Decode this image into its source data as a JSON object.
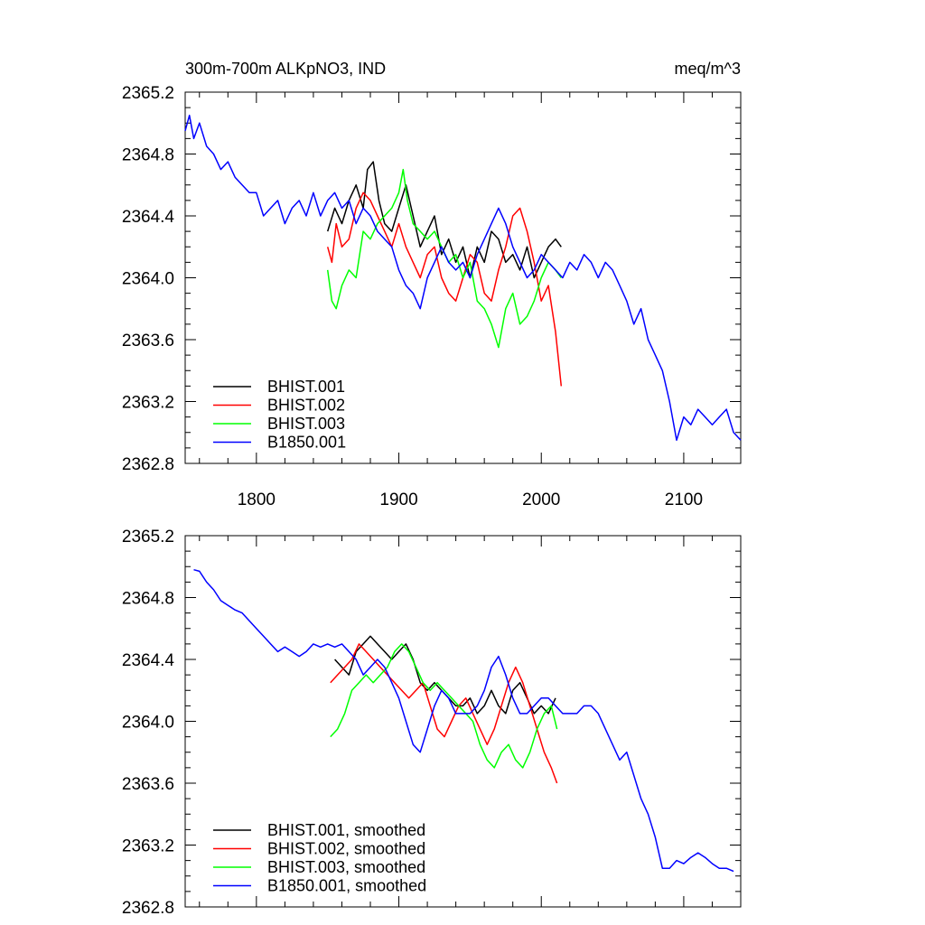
{
  "colors": {
    "BHIST.001": "#000000",
    "BHIST.002": "#ff0000",
    "BHIST.003": "#00ff00",
    "B1850.001": "#0000ff"
  },
  "chart_data": [
    {
      "type": "line",
      "title_left": "300m-700m ALKpNO3, IND",
      "title_right": "meq/m^3",
      "xlabel": "",
      "ylabel": "",
      "xlim": [
        1750,
        2140
      ],
      "ylim": [
        2362.8,
        2365.2
      ],
      "xticks": [
        1800,
        1900,
        2000,
        2100
      ],
      "xtick_labels": [
        "1800",
        "1900",
        "2000",
        "2100"
      ],
      "yticks": [
        2362.8,
        2363.2,
        2363.6,
        2364.0,
        2364.4,
        2364.8,
        2365.2
      ],
      "ytick_labels": [
        "2362.8",
        "2363.2",
        "2363.6",
        "2364.0",
        "2364.4",
        "2364.8",
        "2365.2"
      ],
      "legend_position": "bottom-left",
      "series": [
        {
          "name": "BHIST.001",
          "x": [
            1850,
            1855,
            1860,
            1865,
            1870,
            1875,
            1878,
            1882,
            1886,
            1890,
            1895,
            1900,
            1905,
            1910,
            1915,
            1920,
            1925,
            1930,
            1935,
            1940,
            1945,
            1950,
            1955,
            1960,
            1965,
            1970,
            1975,
            1980,
            1985,
            1990,
            1995,
            2000,
            2005,
            2010,
            2014
          ],
          "y": [
            2364.3,
            2364.45,
            2364.35,
            2364.5,
            2364.6,
            2364.45,
            2364.7,
            2364.75,
            2364.5,
            2364.35,
            2364.3,
            2364.45,
            2364.6,
            2364.4,
            2364.2,
            2364.3,
            2364.4,
            2364.15,
            2364.25,
            2364.1,
            2364.2,
            2364.0,
            2364.2,
            2364.1,
            2364.3,
            2364.25,
            2364.1,
            2364.15,
            2364.05,
            2364.2,
            2364.0,
            2364.1,
            2364.2,
            2364.25,
            2364.2
          ]
        },
        {
          "name": "BHIST.002",
          "x": [
            1850,
            1853,
            1856,
            1860,
            1865,
            1870,
            1875,
            1880,
            1885,
            1890,
            1895,
            1900,
            1905,
            1910,
            1915,
            1920,
            1925,
            1930,
            1935,
            1940,
            1945,
            1950,
            1955,
            1960,
            1965,
            1970,
            1975,
            1980,
            1985,
            1990,
            1995,
            2000,
            2005,
            2010,
            2014
          ],
          "y": [
            2364.2,
            2364.1,
            2364.35,
            2364.2,
            2364.25,
            2364.45,
            2364.55,
            2364.5,
            2364.4,
            2364.3,
            2364.2,
            2364.35,
            2364.2,
            2364.1,
            2364.0,
            2364.15,
            2364.2,
            2364.0,
            2363.9,
            2363.85,
            2364.0,
            2364.15,
            2364.1,
            2363.9,
            2363.85,
            2364.05,
            2364.2,
            2364.4,
            2364.45,
            2364.3,
            2364.1,
            2363.85,
            2363.95,
            2363.65,
            2363.3
          ]
        },
        {
          "name": "BHIST.003",
          "x": [
            1850,
            1853,
            1856,
            1860,
            1865,
            1870,
            1875,
            1880,
            1885,
            1890,
            1895,
            1900,
            1903,
            1906,
            1910,
            1915,
            1920,
            1925,
            1930,
            1935,
            1940,
            1945,
            1950,
            1955,
            1960,
            1965,
            1970,
            1975,
            1980,
            1985,
            1990,
            1995,
            2000,
            2005,
            2010,
            2014
          ],
          "y": [
            2364.05,
            2363.85,
            2363.8,
            2363.95,
            2364.05,
            2364.0,
            2364.3,
            2364.25,
            2364.35,
            2364.4,
            2364.45,
            2364.55,
            2364.7,
            2364.5,
            2364.35,
            2364.3,
            2364.25,
            2364.3,
            2364.2,
            2364.1,
            2364.15,
            2364.0,
            2364.1,
            2363.85,
            2363.8,
            2363.7,
            2363.55,
            2363.8,
            2363.9,
            2363.7,
            2363.75,
            2363.85,
            2364.0,
            2364.1,
            2364.05,
            2364.0
          ]
        },
        {
          "name": "B1850.001",
          "x": [
            1750,
            1753,
            1756,
            1760,
            1765,
            1770,
            1775,
            1780,
            1785,
            1790,
            1795,
            1800,
            1805,
            1810,
            1815,
            1820,
            1825,
            1830,
            1835,
            1840,
            1845,
            1850,
            1855,
            1860,
            1865,
            1870,
            1875,
            1880,
            1885,
            1890,
            1895,
            1900,
            1905,
            1910,
            1915,
            1920,
            1925,
            1930,
            1935,
            1940,
            1945,
            1950,
            1955,
            1960,
            1965,
            1970,
            1975,
            1980,
            1985,
            1990,
            1995,
            2000,
            2005,
            2010,
            2015,
            2020,
            2025,
            2030,
            2035,
            2040,
            2045,
            2050,
            2055,
            2060,
            2065,
            2070,
            2075,
            2080,
            2085,
            2090,
            2095,
            2100,
            2105,
            2110,
            2115,
            2120,
            2125,
            2130,
            2135,
            2140
          ],
          "y": [
            2364.95,
            2365.05,
            2364.9,
            2365.0,
            2364.85,
            2364.8,
            2364.7,
            2364.75,
            2364.65,
            2364.6,
            2364.55,
            2364.55,
            2364.4,
            2364.45,
            2364.5,
            2364.35,
            2364.45,
            2364.5,
            2364.4,
            2364.55,
            2364.4,
            2364.5,
            2364.55,
            2364.45,
            2364.5,
            2364.35,
            2364.45,
            2364.4,
            2364.3,
            2364.25,
            2364.2,
            2364.05,
            2363.95,
            2363.9,
            2363.8,
            2364.0,
            2364.1,
            2364.2,
            2364.1,
            2364.05,
            2364.1,
            2364.0,
            2364.15,
            2364.25,
            2364.35,
            2364.45,
            2364.35,
            2364.2,
            2364.1,
            2364.0,
            2364.05,
            2364.15,
            2364.1,
            2364.05,
            2364.0,
            2364.1,
            2364.05,
            2364.15,
            2364.1,
            2364.0,
            2364.1,
            2364.05,
            2363.95,
            2363.85,
            2363.7,
            2363.8,
            2363.6,
            2363.5,
            2363.4,
            2363.2,
            2362.95,
            2363.1,
            2363.05,
            2363.15,
            2363.1,
            2363.05,
            2363.1,
            2363.15,
            2363.0,
            2362.95
          ]
        }
      ]
    },
    {
      "type": "line",
      "title_left": "",
      "title_right": "",
      "xlabel": "",
      "ylabel": "",
      "xlim": [
        1750,
        2140
      ],
      "ylim": [
        2362.8,
        2365.2
      ],
      "xticks": [
        1800,
        1900,
        2000,
        2100
      ],
      "xtick_labels": [],
      "yticks": [
        2362.8,
        2363.2,
        2363.6,
        2364.0,
        2364.4,
        2364.8,
        2365.2
      ],
      "ytick_labels": [
        "2362.8",
        "2363.2",
        "2363.6",
        "2364.0",
        "2364.4",
        "2364.8",
        "2365.2"
      ],
      "legend_position": "bottom-left",
      "series": [
        {
          "name": "BHIST.001, smoothed",
          "x": [
            1855,
            1860,
            1865,
            1870,
            1875,
            1880,
            1885,
            1890,
            1895,
            1900,
            1905,
            1910,
            1915,
            1920,
            1925,
            1930,
            1935,
            1940,
            1945,
            1950,
            1955,
            1960,
            1965,
            1970,
            1975,
            1980,
            1985,
            1990,
            1995,
            2000,
            2005,
            2010
          ],
          "y": [
            2364.4,
            2364.35,
            2364.3,
            2364.45,
            2364.5,
            2364.55,
            2364.5,
            2364.45,
            2364.4,
            2364.45,
            2364.5,
            2364.4,
            2364.25,
            2364.2,
            2364.25,
            2364.2,
            2364.15,
            2364.1,
            2364.1,
            2364.15,
            2364.05,
            2364.1,
            2364.2,
            2364.1,
            2364.05,
            2364.2,
            2364.25,
            2364.15,
            2364.05,
            2364.1,
            2364.05,
            2364.15
          ]
        },
        {
          "name": "BHIST.002, smoothed",
          "x": [
            1852,
            1857,
            1862,
            1867,
            1872,
            1877,
            1882,
            1887,
            1892,
            1897,
            1902,
            1907,
            1912,
            1917,
            1922,
            1927,
            1932,
            1937,
            1942,
            1947,
            1952,
            1957,
            1962,
            1967,
            1972,
            1977,
            1982,
            1987,
            1992,
            1997,
            2002,
            2007,
            2011
          ],
          "y": [
            2364.25,
            2364.3,
            2364.35,
            2364.4,
            2364.5,
            2364.45,
            2364.4,
            2364.35,
            2364.3,
            2364.25,
            2364.2,
            2364.15,
            2364.2,
            2364.25,
            2364.1,
            2363.95,
            2363.9,
            2364.0,
            2364.1,
            2364.15,
            2364.05,
            2363.95,
            2363.85,
            2363.95,
            2364.1,
            2364.25,
            2364.35,
            2364.25,
            2364.1,
            2363.95,
            2363.8,
            2363.7,
            2363.6
          ]
        },
        {
          "name": "BHIST.003, smoothed",
          "x": [
            1852,
            1857,
            1862,
            1867,
            1872,
            1877,
            1882,
            1887,
            1892,
            1897,
            1902,
            1907,
            1912,
            1917,
            1922,
            1927,
            1932,
            1937,
            1942,
            1947,
            1952,
            1957,
            1962,
            1967,
            1972,
            1977,
            1982,
            1987,
            1992,
            1997,
            2002,
            2007,
            2011
          ],
          "y": [
            2363.9,
            2363.95,
            2364.05,
            2364.2,
            2364.25,
            2364.3,
            2364.25,
            2364.3,
            2364.35,
            2364.45,
            2364.5,
            2364.45,
            2364.35,
            2364.25,
            2364.2,
            2364.25,
            2364.2,
            2364.15,
            2364.1,
            2364.05,
            2364.0,
            2363.85,
            2363.75,
            2363.7,
            2363.8,
            2363.85,
            2363.75,
            2363.7,
            2363.8,
            2363.95,
            2364.05,
            2364.1,
            2363.95
          ]
        },
        {
          "name": "B1850.001, smoothed",
          "x": [
            1756,
            1760,
            1765,
            1770,
            1775,
            1780,
            1785,
            1790,
            1795,
            1800,
            1805,
            1810,
            1815,
            1820,
            1825,
            1830,
            1835,
            1840,
            1845,
            1850,
            1855,
            1860,
            1865,
            1870,
            1875,
            1880,
            1885,
            1890,
            1895,
            1900,
            1905,
            1910,
            1915,
            1920,
            1925,
            1930,
            1935,
            1940,
            1945,
            1950,
            1955,
            1960,
            1965,
            1970,
            1975,
            1980,
            1985,
            1990,
            1995,
            2000,
            2005,
            2010,
            2015,
            2020,
            2025,
            2030,
            2035,
            2040,
            2045,
            2050,
            2055,
            2060,
            2065,
            2070,
            2075,
            2080,
            2085,
            2090,
            2095,
            2100,
            2105,
            2110,
            2115,
            2120,
            2125,
            2130,
            2135
          ],
          "y": [
            2364.98,
            2364.97,
            2364.9,
            2364.85,
            2364.78,
            2364.75,
            2364.72,
            2364.7,
            2364.65,
            2364.6,
            2364.55,
            2364.5,
            2364.45,
            2364.48,
            2364.45,
            2364.42,
            2364.45,
            2364.5,
            2364.48,
            2364.5,
            2364.48,
            2364.5,
            2364.45,
            2364.4,
            2364.3,
            2364.35,
            2364.4,
            2364.35,
            2364.25,
            2364.15,
            2364.0,
            2363.85,
            2363.8,
            2363.95,
            2364.1,
            2364.2,
            2364.15,
            2364.05,
            2364.05,
            2364.05,
            2364.1,
            2364.2,
            2364.35,
            2364.42,
            2364.3,
            2364.15,
            2364.05,
            2364.05,
            2364.1,
            2364.15,
            2364.15,
            2364.1,
            2364.05,
            2364.05,
            2364.05,
            2364.1,
            2364.1,
            2364.05,
            2363.95,
            2363.85,
            2363.75,
            2363.8,
            2363.65,
            2363.5,
            2363.4,
            2363.25,
            2363.05,
            2363.05,
            2363.1,
            2363.08,
            2363.12,
            2363.15,
            2363.12,
            2363.08,
            2363.05,
            2363.05,
            2363.03
          ]
        }
      ]
    }
  ]
}
